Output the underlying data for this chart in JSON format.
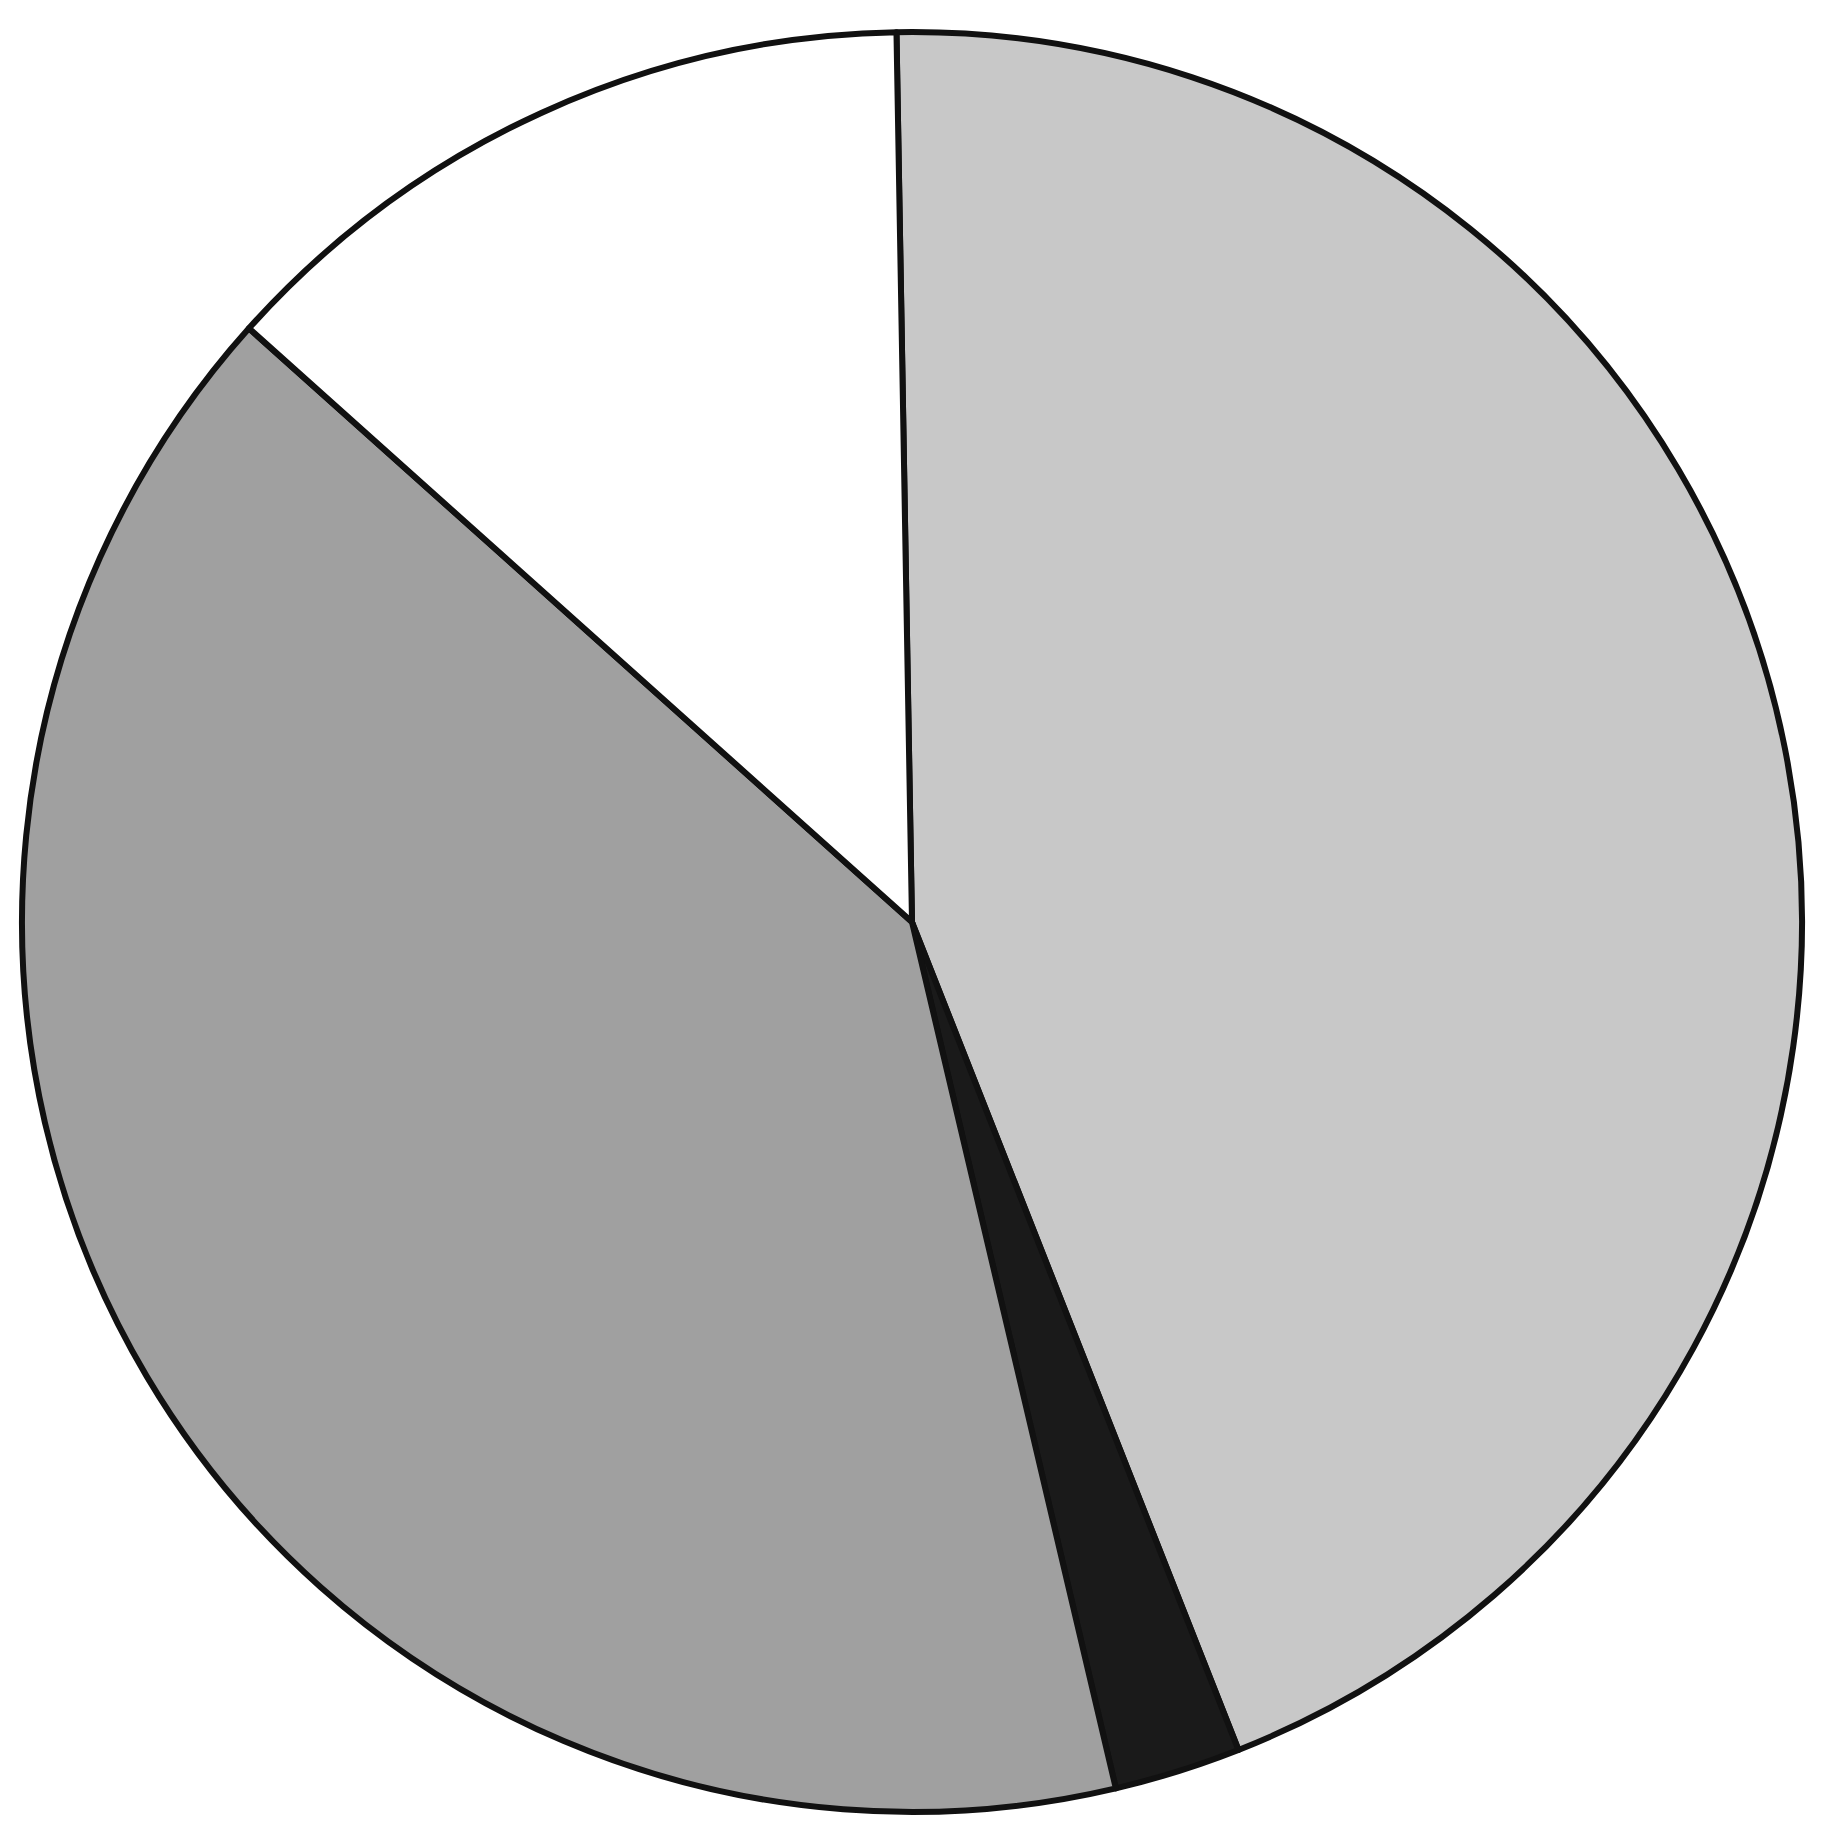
{
  "chart_data": {
    "type": "pie",
    "categories": [
      null,
      null,
      null,
      null
    ],
    "values": [
      44.3,
      2.3,
      40.3,
      13.1
    ],
    "colors": [
      "#c8c8c8",
      "#1a1a1a",
      "#a0a0a0",
      "#ffffff"
    ]
  }
}
